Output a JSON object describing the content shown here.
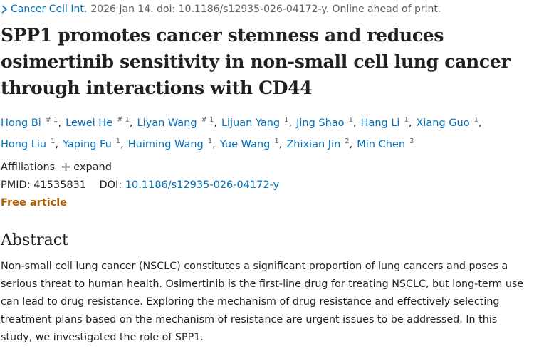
{
  "citation": {
    "journal": "Cancer Cell Int.",
    "rest": "2026 Jan 14. doi: 10.1186/s12935-026-04172-y. Online ahead of print."
  },
  "title": "SPP1 promotes cancer stemness and reduces osimertinib sensitivity in non-small cell lung cancer through interactions with CD44",
  "author_separator": ",",
  "authors": [
    {
      "name": "Hong Bi",
      "marks": [
        "#",
        "1"
      ]
    },
    {
      "name": "Lewei He",
      "marks": [
        "#",
        "1"
      ]
    },
    {
      "name": "Liyan Wang",
      "marks": [
        "#",
        "1"
      ]
    },
    {
      "name": "Lijuan Yang",
      "marks": [
        "1"
      ]
    },
    {
      "name": "Jing Shao",
      "marks": [
        "1"
      ]
    },
    {
      "name": "Hang Li",
      "marks": [
        "1"
      ]
    },
    {
      "name": "Xiang Guo",
      "marks": [
        "1"
      ]
    },
    {
      "name": "Hong Liu",
      "marks": [
        "1"
      ]
    },
    {
      "name": "Yaping Fu",
      "marks": [
        "1"
      ]
    },
    {
      "name": "Huiming Wang",
      "marks": [
        "1"
      ]
    },
    {
      "name": "Yue Wang",
      "marks": [
        "1"
      ]
    },
    {
      "name": "Zhixian Jin",
      "marks": [
        "2"
      ]
    },
    {
      "name": "Min Chen",
      "marks": [
        "3"
      ]
    }
  ],
  "affiliations": {
    "label": "Affiliations",
    "action": "expand"
  },
  "identifiers": {
    "pmid_label": "PMID:",
    "pmid": "41535831",
    "doi_label": "DOI:",
    "doi": "10.1186/s12935-026-04172-y"
  },
  "free_article": "Free article",
  "abstract": {
    "heading": "Abstract",
    "text": "Non-small cell lung cancer (NSCLC) constitutes a significant proportion of lung cancers and poses a serious threat to human health. Osimertinib is the first-line drug for treating NSCLC, but long-term use can lead to drug resistance. Exploring the mechanism of drug resistance and effectively selecting treatment plans based on the mechanism of resistance are urgent issues to be addressed. In this study, we investigated the role of SPP1."
  }
}
